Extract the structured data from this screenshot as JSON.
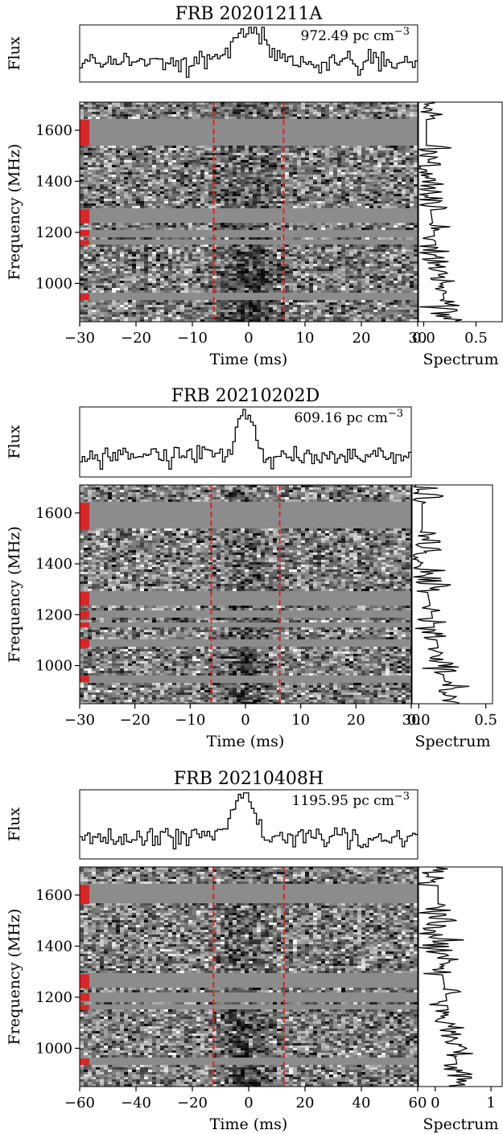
{
  "chart_data": [
    {
      "type": "heatmap",
      "title": "FRB 20201211A",
      "dm_label": "972.49 pc cm",
      "dm_exp": "−3",
      "profile_ylabel": "Flux",
      "ylabel": "Frequency (MHz)",
      "xlabel": "Time (ms)",
      "spectrum_xlabel": "Spectrum",
      "xlim": [
        -30,
        30
      ],
      "ylim": [
        850,
        1710
      ],
      "xticks": [
        -30,
        -20,
        -10,
        0,
        10,
        20,
        30
      ],
      "xtick_labels": [
        "−30",
        "−20",
        "−10",
        "0",
        "10",
        "20",
        "30"
      ],
      "yticks": [
        1000,
        1200,
        1400,
        1600
      ],
      "ytick_labels": [
        "1000",
        "1200",
        "1400",
        "1600"
      ],
      "spec_xlim": [
        -0.05,
        0.75
      ],
      "spec_ticks": [
        0.0,
        0.5
      ],
      "spec_tick_labels": [
        "0.0",
        "0.5"
      ],
      "window_edges_ms": [
        -6.2,
        6.2
      ],
      "peak_time_ms": 0.2,
      "pulse_width_ms": 2.8,
      "masked_bands_mhz": [
        [
          1540,
          1640
        ],
        [
          1235,
          1290
        ],
        [
          1185,
          1210
        ],
        [
          1150,
          1170
        ],
        [
          935,
          960
        ]
      ],
      "mask_color": "#d62728",
      "window_color": "#d62728"
    },
    {
      "type": "heatmap",
      "title": "FRB 20210202D",
      "dm_label": "609.16 pc cm",
      "dm_exp": "−3",
      "profile_ylabel": "Flux",
      "ylabel": "Frequency (MHz)",
      "xlabel": "Time (ms)",
      "spectrum_xlabel": "Spectrum",
      "xlim": [
        -30,
        30
      ],
      "ylim": [
        850,
        1710
      ],
      "xticks": [
        -30,
        -20,
        -10,
        0,
        10,
        20,
        30
      ],
      "xtick_labels": [
        "−30",
        "−20",
        "−10",
        "0",
        "10",
        "20",
        "30"
      ],
      "yticks": [
        1000,
        1200,
        1400,
        1600
      ],
      "ytick_labels": [
        "1000",
        "1200",
        "1400",
        "1600"
      ],
      "spec_xlim": [
        -0.05,
        0.55
      ],
      "spec_ticks": [
        0.0,
        0.5
      ],
      "spec_tick_labels": [
        "0.0",
        "0.5"
      ],
      "window_edges_ms": [
        -6.2,
        6.2
      ],
      "peak_time_ms": 0.0,
      "pulse_width_ms": 1.5,
      "masked_bands_mhz": [
        [
          1535,
          1640
        ],
        [
          1235,
          1290
        ],
        [
          1185,
          1215
        ],
        [
          1150,
          1170
        ],
        [
          1070,
          1105
        ],
        [
          935,
          960
        ]
      ],
      "mask_color": "#d62728",
      "window_color": "#d62728"
    },
    {
      "type": "heatmap",
      "title": "FRB 20210408H",
      "dm_label": "1195.95 pc cm",
      "dm_exp": "−3",
      "profile_ylabel": "Flux",
      "ylabel": "Frequency (MHz)",
      "xlabel": "Time (ms)",
      "spectrum_xlabel": "Spectrum",
      "xlim": [
        -60,
        60
      ],
      "ylim": [
        850,
        1710
      ],
      "xticks": [
        -60,
        -40,
        -20,
        0,
        20,
        40,
        60
      ],
      "xtick_labels": [
        "−60",
        "−40",
        "−20",
        "0",
        "20",
        "40",
        "60"
      ],
      "yticks": [
        1000,
        1200,
        1400,
        1600
      ],
      "ytick_labels": [
        "1000",
        "1200",
        "1400",
        "1600"
      ],
      "spec_xlim": [
        -0.3,
        1.2
      ],
      "spec_ticks": [
        0,
        1
      ],
      "spec_tick_labels": [
        "0",
        "1"
      ],
      "window_edges_ms": [
        -12.5,
        12.5
      ],
      "peak_time_ms": -2.0,
      "pulse_width_ms": 3.5,
      "masked_bands_mhz": [
        [
          1565,
          1640
        ],
        [
          1235,
          1290
        ],
        [
          1185,
          1215
        ],
        [
          1150,
          1170
        ],
        [
          935,
          960
        ]
      ],
      "mask_color": "#d62728",
      "window_color": "#d62728"
    }
  ]
}
